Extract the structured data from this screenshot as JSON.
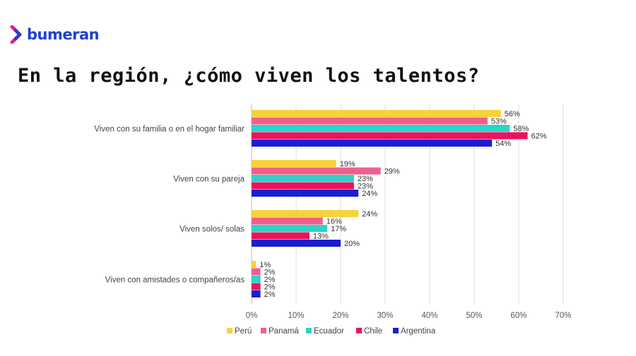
{
  "brand": {
    "name": "bumeran",
    "accent": "#1f3fd6",
    "arrow_colors": [
      "#e8246f",
      "#1f3fd6"
    ]
  },
  "title": "En la región, ¿cómo viven los talentos?",
  "chart_data": {
    "type": "bar",
    "orientation": "horizontal",
    "categories": [
      "Viven con su familia o en el hogar familiar",
      "Viven con su pareja",
      "Viven solos/ solas",
      "Viven con amistades o compañeros/as"
    ],
    "series": [
      {
        "name": "Perú",
        "color": "#f7d23a",
        "values": [
          56,
          19,
          24,
          1
        ]
      },
      {
        "name": "Panamá",
        "color": "#f25e8c",
        "values": [
          53,
          29,
          16,
          2
        ]
      },
      {
        "name": "Ecuador",
        "color": "#29d4c8",
        "values": [
          58,
          23,
          17,
          2
        ]
      },
      {
        "name": "Chile",
        "color": "#e8135e",
        "values": [
          62,
          23,
          13,
          2
        ]
      },
      {
        "name": "Argentina",
        "color": "#1a1ecf",
        "values": [
          54,
          24,
          20,
          2
        ]
      }
    ],
    "value_format": "percent",
    "xlim": [
      0,
      70
    ],
    "xticks": [
      "0%",
      "10%",
      "20%",
      "30%",
      "40%",
      "50%",
      "60%",
      "70%"
    ],
    "grid": true,
    "legend_position": "bottom"
  }
}
